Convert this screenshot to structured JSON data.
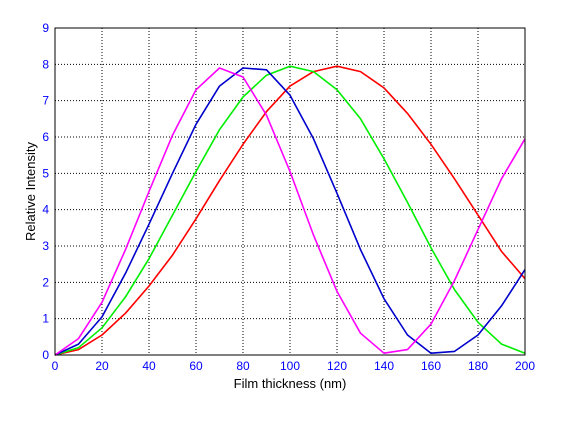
{
  "chart_data": {
    "type": "line",
    "title": "",
    "xlabel": "Film thickness (nm)",
    "ylabel": "Relative Intensity",
    "xlim": [
      0,
      200
    ],
    "ylim": [
      0,
      9
    ],
    "xticks": [
      0,
      20,
      40,
      60,
      80,
      100,
      120,
      140,
      160,
      180,
      200
    ],
    "yticks": [
      0,
      1,
      2,
      3,
      4,
      5,
      6,
      7,
      8,
      9
    ],
    "grid": true,
    "legend": "none",
    "tick_label_color": "#0000ff",
    "series": [
      {
        "color": "#ff0000",
        "x": [
          0,
          10,
          20,
          30,
          40,
          50,
          60,
          70,
          80,
          90,
          100,
          110,
          120,
          130,
          140,
          150,
          160,
          170,
          180,
          190,
          200
        ],
        "y": [
          0.0,
          0.15,
          0.55,
          1.15,
          1.9,
          2.75,
          3.75,
          4.8,
          5.8,
          6.7,
          7.4,
          7.8,
          7.95,
          7.8,
          7.35,
          6.65,
          5.8,
          4.85,
          3.85,
          2.85,
          2.1
        ]
      },
      {
        "color": "#00ee00",
        "x": [
          0,
          10,
          20,
          30,
          40,
          50,
          60,
          70,
          80,
          90,
          100,
          110,
          120,
          130,
          140,
          150,
          160,
          170,
          180,
          190,
          200
        ],
        "y": [
          0.0,
          0.2,
          0.75,
          1.6,
          2.65,
          3.85,
          5.05,
          6.2,
          7.1,
          7.7,
          7.95,
          7.8,
          7.3,
          6.5,
          5.4,
          4.2,
          2.95,
          1.8,
          0.9,
          0.3,
          0.05
        ]
      },
      {
        "color": "#0000cc",
        "x": [
          0,
          10,
          20,
          30,
          40,
          50,
          60,
          70,
          80,
          90,
          100,
          110,
          120,
          130,
          140,
          150,
          160,
          170,
          180,
          190,
          200
        ],
        "y": [
          0.0,
          0.3,
          1.05,
          2.25,
          3.6,
          5.0,
          6.35,
          7.4,
          7.9,
          7.85,
          7.15,
          5.95,
          4.45,
          2.9,
          1.55,
          0.55,
          0.05,
          0.1,
          0.55,
          1.35,
          2.35
        ]
      },
      {
        "color": "#ff00ff",
        "x": [
          0,
          10,
          20,
          30,
          40,
          50,
          60,
          70,
          80,
          90,
          100,
          110,
          120,
          130,
          140,
          150,
          160,
          170,
          180,
          190,
          200
        ],
        "y": [
          0.0,
          0.45,
          1.45,
          2.9,
          4.5,
          6.05,
          7.3,
          7.9,
          7.65,
          6.6,
          5.05,
          3.3,
          1.75,
          0.6,
          0.05,
          0.15,
          0.85,
          2.05,
          3.45,
          4.85,
          5.95
        ]
      }
    ]
  }
}
